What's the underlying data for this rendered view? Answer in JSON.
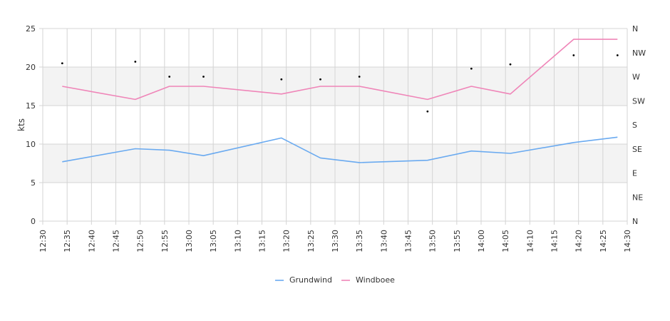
{
  "chart_data": {
    "type": "line",
    "ylabel": "kts",
    "ylim": [
      0,
      25
    ],
    "yticks": [
      "0",
      "5",
      "10",
      "15",
      "20",
      "25"
    ],
    "x_range": [
      "12:30",
      "14:30"
    ],
    "xticks": [
      "12:30",
      "12:35",
      "12:40",
      "12:45",
      "12:50",
      "12:55",
      "13:00",
      "13:05",
      "13:10",
      "13:15",
      "13:20",
      "13:25",
      "13:30",
      "13:35",
      "13:40",
      "13:45",
      "13:50",
      "13:55",
      "14:00",
      "14:05",
      "14:10",
      "14:15",
      "14:20",
      "14:25",
      "14:30"
    ],
    "direction_ticks": [
      "N",
      "NE",
      "E",
      "SE",
      "S",
      "SW",
      "W",
      "NW",
      "N"
    ],
    "direction_range_deg": [
      0,
      360
    ],
    "bands": [
      [
        5,
        10
      ],
      [
        15,
        20
      ]
    ],
    "grid": true,
    "legend_position": "bottom",
    "series": [
      {
        "name": "Grundwind",
        "color": "#6aaaf0",
        "x": [
          "12:34",
          "12:49",
          "12:56",
          "13:03",
          "13:19",
          "13:27",
          "13:35",
          "13:49",
          "13:58",
          "14:06",
          "14:19",
          "14:28"
        ],
        "values": [
          7.7,
          9.4,
          9.2,
          8.5,
          10.8,
          8.2,
          7.6,
          7.9,
          9.1,
          8.8,
          10.2,
          10.9
        ]
      },
      {
        "name": "Windboee",
        "color": "#ef85b8",
        "x": [
          "12:34",
          "12:49",
          "12:56",
          "13:03",
          "13:19",
          "13:27",
          "13:35",
          "13:49",
          "13:58",
          "14:06",
          "14:19",
          "14:28"
        ],
        "values": [
          17.5,
          15.8,
          17.5,
          17.5,
          16.5,
          17.5,
          17.5,
          15.8,
          17.5,
          16.5,
          23.6,
          23.6
        ]
      }
    ],
    "direction_points": {
      "x": [
        "12:34",
        "12:49",
        "12:56",
        "13:03",
        "13:19",
        "13:27",
        "13:35",
        "13:49",
        "13:58",
        "14:06",
        "14:19",
        "14:28"
      ],
      "degrees": [
        295,
        298,
        270,
        270,
        265,
        265,
        270,
        205,
        285,
        293,
        310,
        310
      ]
    }
  }
}
